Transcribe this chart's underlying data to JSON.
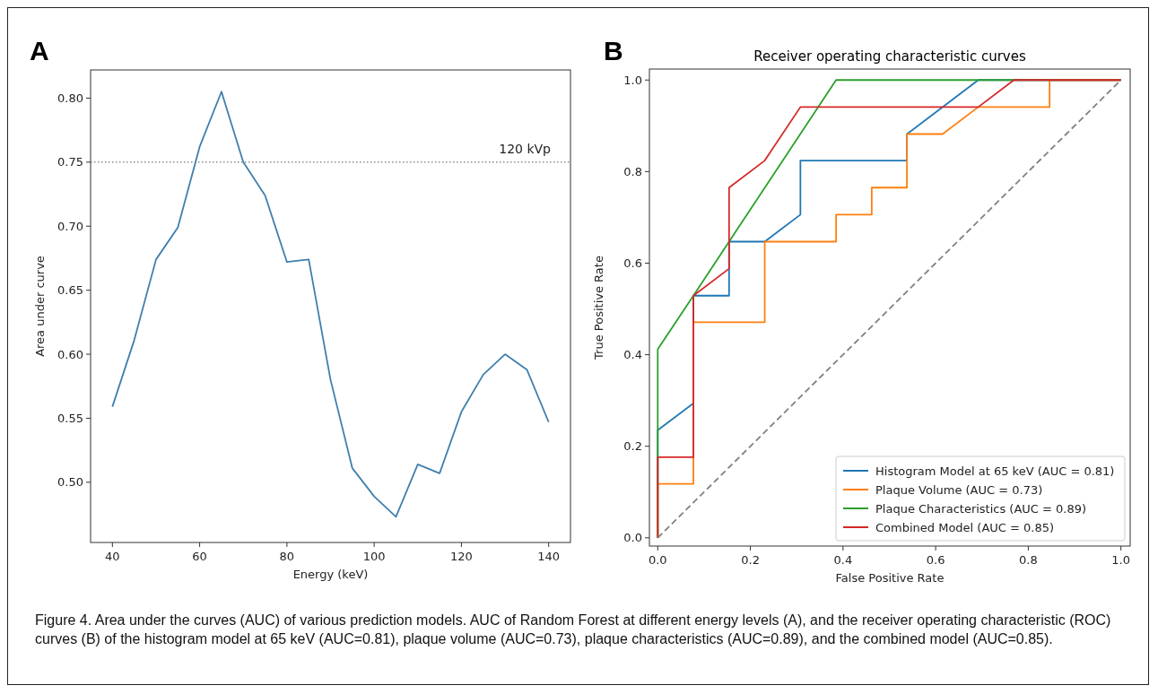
{
  "chart_data": [
    {
      "type": "line",
      "xlabel": "Energy (keV)",
      "ylabel": "Area under curve",
      "annotations": [
        "A"
      ],
      "x": [
        40,
        45,
        50,
        55,
        60,
        65,
        70,
        75,
        80,
        85,
        90,
        95,
        100,
        105,
        110,
        115,
        120,
        125,
        130,
        135,
        140
      ],
      "series": [
        {
          "color": "#3f7fae",
          "values": [
            0.559,
            0.611,
            0.674,
            0.699,
            0.762,
            0.805,
            0.75,
            0.724,
            0.672,
            0.674,
            0.58,
            0.511,
            0.489,
            0.473,
            0.514,
            0.507,
            0.555,
            0.584,
            0.6,
            0.588,
            0.547
          ]
        }
      ],
      "xlim": [
        35,
        145
      ],
      "xticks": [
        40,
        60,
        80,
        100,
        120,
        140
      ],
      "ylim": [
        0.453,
        0.822
      ],
      "yticks": [
        {
          "value": 0.5,
          "label": "0.50"
        },
        {
          "value": 0.55,
          "label": "0.55"
        },
        {
          "value": 0.6,
          "label": "0.60"
        },
        {
          "value": 0.65,
          "label": "0.65"
        },
        {
          "value": 0.7,
          "label": "0.70"
        },
        {
          "value": 0.75,
          "label": "0.75"
        },
        {
          "value": 0.8,
          "label": "0.80"
        }
      ],
      "ref_lines": [
        {
          "axis": "y",
          "value": 0.75,
          "label": "120 kVp",
          "color": "#555555",
          "line_style": "dotted"
        }
      ],
      "grid": false,
      "legend": false,
      "marker": "none"
    },
    {
      "type": "line",
      "title": "Receiver operating characteristic curves",
      "xlabel": "False Positive Rate",
      "ylabel": "True Positive Rate",
      "annotations": [
        "B",
        "Figure 4. Area under the curves (AUC) of various prediction models. AUC of Random Forest at different energy levels (A), and the receiver operating characteristic (ROC) curves (B) of the histogram model at 65 keV (AUC=0.81), plaque volume (AUC=0.73), plaque characteristics (AUC=0.89), and the combined model (AUC=0.85)."
      ],
      "series": [
        {
          "name": "Histogram Model at 65 keV (AUC = 0.81)",
          "color": "#1f77b4",
          "x": [
            0,
            0,
            0.077,
            0.077,
            0.154,
            0.154,
            0.231,
            0.308,
            0.308,
            0.538,
            0.538,
            0.692,
            1
          ],
          "values": [
            0,
            0.235,
            0.294,
            0.529,
            0.529,
            0.647,
            0.647,
            0.706,
            0.824,
            0.824,
            0.882,
            1,
            1
          ]
        },
        {
          "name": "Plaque Volume (AUC = 0.73)",
          "color": "#ff7f0e",
          "x": [
            0,
            0,
            0.077,
            0.077,
            0.231,
            0.231,
            0.385,
            0.385,
            0.462,
            0.462,
            0.538,
            0.538,
            0.615,
            0.692,
            0.846,
            0.846,
            1
          ],
          "values": [
            0,
            0.118,
            0.118,
            0.471,
            0.471,
            0.647,
            0.647,
            0.706,
            0.706,
            0.765,
            0.765,
            0.882,
            0.882,
            0.941,
            0.941,
            1,
            1
          ]
        },
        {
          "name": "Plaque Characteristics (AUC = 0.89)",
          "color": "#2ca02c",
          "x": [
            0,
            0,
            0.077,
            0.154,
            0.385,
            1
          ],
          "values": [
            0,
            0.412,
            0.529,
            0.647,
            1,
            1
          ]
        },
        {
          "name": "Combined Model (AUC = 0.85)",
          "color": "#d62728",
          "x": [
            0,
            0,
            0.077,
            0.077,
            0.154,
            0.154,
            0.231,
            0.308,
            0.692,
            0.769,
            1
          ],
          "values": [
            0,
            0.176,
            0.176,
            0.529,
            0.588,
            0.765,
            0.824,
            0.941,
            0.941,
            1,
            1
          ]
        },
        {
          "color": "#808080",
          "line_style": "dashed",
          "x": [
            0,
            1
          ],
          "values": [
            0,
            1
          ]
        }
      ],
      "xlim": [
        -0.018,
        1.02
      ],
      "xticks": [
        {
          "value": 0,
          "label": "0.0"
        },
        {
          "value": 0.2,
          "label": "0.2"
        },
        {
          "value": 0.4,
          "label": "0.4"
        },
        {
          "value": 0.6,
          "label": "0.6"
        },
        {
          "value": 0.8,
          "label": "0.8"
        },
        {
          "value": 1,
          "label": "1.0"
        }
      ],
      "ylim": [
        -0.018,
        1.024
      ],
      "yticks": [
        {
          "value": 0,
          "label": "0.0"
        },
        {
          "value": 0.2,
          "label": "0.2"
        },
        {
          "value": 0.4,
          "label": "0.4"
        },
        {
          "value": 0.6,
          "label": "0.6"
        },
        {
          "value": 0.8,
          "label": "0.8"
        },
        {
          "value": 1,
          "label": "1.0"
        }
      ],
      "grid": false,
      "legend": "bottom right",
      "marker": "none"
    }
  ]
}
